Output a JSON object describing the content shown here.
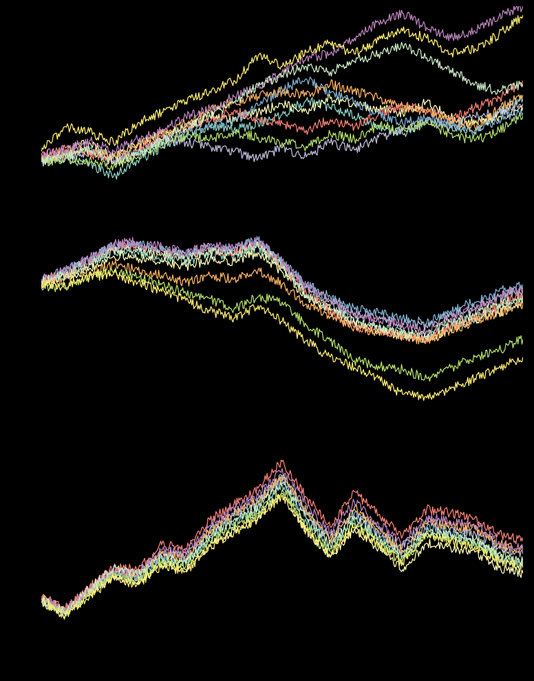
{
  "palette": [
    "#8dd3c7",
    "#feffb3",
    "#bfbbd9",
    "#fa8174",
    "#81b1d2",
    "#fdb462",
    "#b3de69",
    "#bc82bd",
    "#ccebc4",
    "#ffed6f"
  ],
  "background": "#000000",
  "chart_data": [
    {
      "type": "line",
      "grid": false,
      "legend": "none",
      "x": [
        0,
        25,
        50,
        75,
        100,
        125,
        150,
        175,
        200,
        225,
        250,
        275,
        300,
        325,
        350,
        375,
        400,
        425,
        450,
        475,
        500
      ],
      "ylim": [
        -1.0,
        9.0
      ],
      "series": [
        {
          "color": "#8dd3c7",
          "values": [
            0.3,
            0.4,
            0.1,
            -0.6,
            0.3,
            1.0,
            1.6,
            2.3,
            2.0,
            2.4,
            2.9,
            3.7,
            3.3,
            2.8,
            2.2,
            1.8,
            2.5,
            2.2,
            1.9,
            3.0,
            3.8
          ]
        },
        {
          "color": "#feffb3",
          "values": [
            0.4,
            0.9,
            1.3,
            0.5,
            1.2,
            1.8,
            2.1,
            2.8,
            2.6,
            3.0,
            3.5,
            3.1,
            3.8,
            3.5,
            3.2,
            3.0,
            3.6,
            2.7,
            2.4,
            2.8,
            3.3
          ]
        },
        {
          "color": "#bfbbd9",
          "values": [
            0.2,
            0.5,
            0.8,
            0.2,
            0.6,
            1.5,
            1.3,
            1.1,
            0.8,
            0.4,
            1.0,
            0.5,
            1.3,
            0.9,
            1.6,
            2.0,
            2.5,
            2.2,
            2.8,
            3.0,
            3.5
          ]
        },
        {
          "color": "#fa8174",
          "values": [
            0.5,
            1.0,
            0.7,
            0.3,
            0.9,
            1.6,
            2.2,
            2.5,
            3.1,
            2.6,
            2.4,
            2.0,
            2.6,
            2.2,
            2.9,
            3.4,
            3.1,
            2.6,
            3.3,
            3.8,
            4.8
          ]
        },
        {
          "color": "#81b1d2",
          "values": [
            0.3,
            0.6,
            1.0,
            0.4,
            0.8,
            1.3,
            1.9,
            2.2,
            2.5,
            3.4,
            4.3,
            4.9,
            4.1,
            3.6,
            2.9,
            2.4,
            2.7,
            2.3,
            2.0,
            2.6,
            3.0
          ]
        },
        {
          "color": "#fdb462",
          "values": [
            0.4,
            0.7,
            0.9,
            0.5,
            1.1,
            1.8,
            2.4,
            3.1,
            3.6,
            3.9,
            4.2,
            4.0,
            4.6,
            4.2,
            3.8,
            3.3,
            3.1,
            2.5,
            2.2,
            3.2,
            4.0
          ]
        },
        {
          "color": "#b3de69",
          "values": [
            0.2,
            0.4,
            0.3,
            0.0,
            0.5,
            1.2,
            1.7,
            1.5,
            1.9,
            1.6,
            1.3,
            1.1,
            1.8,
            1.5,
            2.3,
            2.0,
            2.4,
            1.8,
            1.4,
            2.0,
            2.8
          ]
        },
        {
          "color": "#bc82bd",
          "values": [
            0.6,
            0.9,
            1.4,
            0.8,
            1.5,
            2.0,
            2.8,
            3.2,
            3.9,
            4.4,
            5.3,
            6.1,
            6.3,
            7.2,
            8.1,
            8.6,
            7.8,
            7.2,
            7.6,
            8.4,
            9.0
          ]
        },
        {
          "color": "#ccebc4",
          "values": [
            0.3,
            0.5,
            0.9,
            0.2,
            0.6,
            1.4,
            2.2,
            2.8,
            3.6,
            4.5,
            5.1,
            5.6,
            5.3,
            5.9,
            6.3,
            6.8,
            6.1,
            5.4,
            4.6,
            4.2,
            4.6
          ]
        },
        {
          "color": "#ffed6f",
          "values": [
            0.8,
            2.2,
            1.9,
            1.3,
            2.4,
            3.0,
            3.6,
            4.2,
            4.8,
            6.2,
            5.6,
            6.4,
            6.9,
            6.3,
            7.1,
            7.6,
            7.2,
            6.3,
            6.6,
            7.4,
            8.5
          ]
        }
      ]
    },
    {
      "type": "line",
      "grid": false,
      "legend": "none",
      "x": [
        0,
        25,
        50,
        75,
        100,
        125,
        150,
        175,
        200,
        225,
        250,
        275,
        300,
        325,
        350,
        375,
        400,
        425,
        450,
        475,
        500
      ],
      "ylim": [
        -7.0,
        3.0
      ],
      "series": [
        {
          "color": "#8dd3c7",
          "values": [
            0.3,
            0.6,
            1.2,
            2.0,
            1.9,
            1.6,
            1.4,
            1.8,
            1.7,
            2.2,
            1.0,
            -0.4,
            -1.1,
            -2.0,
            -2.3,
            -2.6,
            -2.9,
            -2.2,
            -1.8,
            -1.2,
            -0.8
          ]
        },
        {
          "color": "#feffb3",
          "values": [
            0.2,
            0.5,
            1.0,
            1.7,
            1.6,
            1.4,
            1.1,
            1.5,
            1.4,
            1.9,
            0.8,
            -0.6,
            -1.4,
            -2.1,
            -2.5,
            -2.8,
            -3.0,
            -2.4,
            -1.9,
            -1.5,
            -1.0
          ]
        },
        {
          "color": "#bfbbd9",
          "values": [
            0.4,
            0.8,
            1.5,
            2.3,
            2.3,
            2.0,
            1.8,
            2.2,
            2.0,
            2.5,
            1.3,
            -0.1,
            -0.8,
            -1.5,
            -1.9,
            -2.1,
            -2.3,
            -1.6,
            -1.2,
            -0.6,
            -0.2
          ]
        },
        {
          "color": "#fa8174",
          "values": [
            0.3,
            0.7,
            1.4,
            2.2,
            2.2,
            1.9,
            1.7,
            2.0,
            1.9,
            2.4,
            1.1,
            -0.4,
            -1.4,
            -2.3,
            -2.5,
            -2.8,
            -3.0,
            -2.3,
            -1.7,
            -1.1,
            -0.5
          ]
        },
        {
          "color": "#81b1d2",
          "values": [
            0.4,
            0.9,
            1.5,
            2.3,
            2.4,
            2.1,
            1.8,
            2.2,
            2.1,
            2.6,
            1.4,
            0.1,
            -0.6,
            -1.3,
            -1.5,
            -1.8,
            -2.1,
            -1.4,
            -0.9,
            -0.3,
            0.1
          ]
        },
        {
          "color": "#fdb462",
          "values": [
            0.2,
            0.4,
            0.8,
            1.2,
            0.9,
            0.6,
            0.2,
            0.6,
            0.4,
            0.9,
            0.1,
            -1.0,
            -1.7,
            -2.3,
            -2.6,
            -2.8,
            -3.1,
            -2.5,
            -2.0,
            -1.5,
            -1.0
          ]
        },
        {
          "color": "#b3de69",
          "values": [
            0.0,
            -0.1,
            0.6,
            0.8,
            0.5,
            0.1,
            -0.4,
            -0.7,
            -1.3,
            -0.6,
            -0.9,
            -2.2,
            -3.1,
            -4.2,
            -4.5,
            -4.7,
            -5.2,
            -4.6,
            -4.0,
            -3.6,
            -3.0
          ]
        },
        {
          "color": "#bc82bd",
          "values": [
            0.4,
            0.9,
            1.6,
            2.4,
            2.5,
            2.2,
            1.9,
            2.3,
            2.1,
            2.6,
            1.4,
            0.0,
            -0.8,
            -1.6,
            -1.9,
            -2.2,
            -2.5,
            -1.8,
            -1.3,
            -0.6,
            -0.1
          ]
        },
        {
          "color": "#ccebc4",
          "values": [
            0.3,
            0.6,
            1.3,
            2.0,
            2.0,
            1.8,
            1.5,
            1.9,
            1.8,
            2.3,
            1.1,
            -0.5,
            -1.3,
            -2.0,
            -2.4,
            -2.7,
            -2.8,
            -2.0,
            -1.6,
            -1.0,
            -0.6
          ]
        },
        {
          "color": "#ffed6f",
          "values": [
            0.1,
            0.0,
            0.5,
            0.7,
            0.2,
            -0.3,
            -0.8,
            -1.4,
            -1.8,
            -1.1,
            -2.0,
            -3.1,
            -4.0,
            -4.6,
            -5.2,
            -6.1,
            -6.3,
            -5.8,
            -5.2,
            -4.6,
            -4.0
          ]
        }
      ]
    },
    {
      "type": "line",
      "grid": false,
      "legend": "none",
      "x": [
        0,
        25,
        50,
        75,
        100,
        125,
        150,
        175,
        200,
        225,
        250,
        275,
        300,
        325,
        350,
        375,
        400,
        425,
        450,
        475,
        500
      ],
      "ylim": [
        -1.0,
        9.0
      ],
      "series": [
        {
          "color": "#8dd3c7",
          "values": [
            1.2,
            0.4,
            1.6,
            2.6,
            2.3,
            3.4,
            3.1,
            4.6,
            5.5,
            6.2,
            7.6,
            5.5,
            4.0,
            5.6,
            4.5,
            3.4,
            4.9,
            4.6,
            4.4,
            3.5,
            3.2
          ]
        },
        {
          "color": "#feffb3",
          "values": [
            1.0,
            0.2,
            1.4,
            2.4,
            2.1,
            3.1,
            2.8,
            4.2,
            5.0,
            5.8,
            7.1,
            5.0,
            3.5,
            5.1,
            4.0,
            2.8,
            4.3,
            4.0,
            3.8,
            2.9,
            2.6
          ]
        },
        {
          "color": "#bfbbd9",
          "values": [
            1.2,
            0.5,
            1.7,
            2.8,
            2.6,
            3.8,
            3.6,
            5.1,
            6.0,
            6.8,
            8.1,
            6.2,
            4.6,
            6.2,
            5.1,
            4.1,
            5.5,
            5.2,
            4.9,
            4.1,
            3.7
          ]
        },
        {
          "color": "#fa8174",
          "values": [
            1.3,
            0.6,
            1.8,
            2.9,
            2.8,
            4.2,
            4.0,
            5.6,
            6.5,
            7.4,
            8.9,
            6.9,
            5.2,
            7.2,
            5.9,
            4.7,
            6.2,
            6.0,
            5.7,
            4.8,
            4.4
          ]
        },
        {
          "color": "#81b1d2",
          "values": [
            1.1,
            0.3,
            1.5,
            2.6,
            2.4,
            3.6,
            3.3,
            4.9,
            5.8,
            6.6,
            7.9,
            5.9,
            4.4,
            6.0,
            4.8,
            3.8,
            5.2,
            4.9,
            4.4,
            3.4,
            3.0
          ]
        },
        {
          "color": "#fdb462",
          "values": [
            1.2,
            0.4,
            1.6,
            2.7,
            2.5,
            3.7,
            3.4,
            5.0,
            5.9,
            6.7,
            8.0,
            6.1,
            4.5,
            6.3,
            5.0,
            3.9,
            5.4,
            5.3,
            5.1,
            4.3,
            3.9
          ]
        },
        {
          "color": "#b3de69",
          "values": [
            1.0,
            0.3,
            1.5,
            2.5,
            2.2,
            3.3,
            3.0,
            4.4,
            5.3,
            6.0,
            7.3,
            5.3,
            3.8,
            5.4,
            4.3,
            3.3,
            4.7,
            4.5,
            4.3,
            3.5,
            3.1
          ]
        },
        {
          "color": "#bc82bd",
          "values": [
            1.2,
            0.5,
            1.7,
            2.8,
            2.6,
            3.9,
            3.7,
            5.3,
            6.2,
            7.0,
            8.5,
            6.5,
            4.9,
            6.6,
            5.4,
            4.3,
            5.8,
            5.5,
            5.3,
            4.4,
            4.0
          ]
        },
        {
          "color": "#ccebc4",
          "values": [
            1.1,
            0.4,
            1.7,
            2.9,
            2.5,
            3.5,
            3.2,
            4.7,
            5.6,
            6.4,
            7.7,
            5.7,
            4.2,
            5.8,
            4.6,
            3.6,
            5.0,
            4.7,
            4.5,
            3.7,
            3.3
          ]
        },
        {
          "color": "#ffed6f",
          "values": [
            1.0,
            0.2,
            1.3,
            2.3,
            2.0,
            3.0,
            2.7,
            4.1,
            4.9,
            5.7,
            7.0,
            5.0,
            3.6,
            5.2,
            4.2,
            3.2,
            4.8,
            4.4,
            4.1,
            3.3,
            2.9
          ]
        }
      ]
    }
  ]
}
